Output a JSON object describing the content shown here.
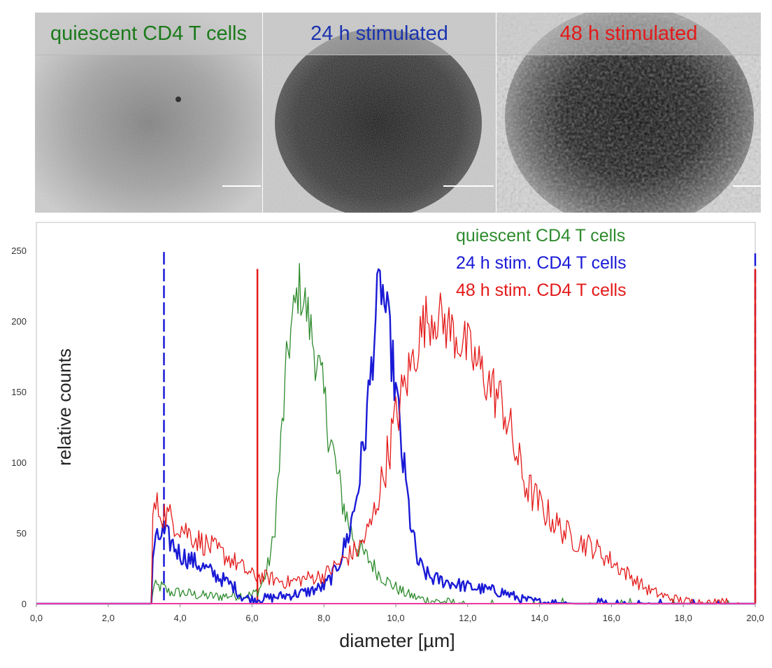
{
  "micrographs": [
    {
      "title": "quiescent CD4 T cells",
      "color": "#1b7a1b"
    },
    {
      "title": "24 h stimulated",
      "color": "#1a33b0"
    },
    {
      "title": "48 h stimulated",
      "color": "#e41a1a"
    }
  ],
  "chart_data": {
    "type": "line",
    "xlabel": "diameter [µm]",
    "ylabel": "relative counts",
    "xlim": [
      0,
      20
    ],
    "ylim": [
      0,
      260
    ],
    "xticks": [
      "0,0",
      "2,0",
      "4,0",
      "6,0",
      "8,0",
      "10,0",
      "12,0",
      "14,0",
      "16,0",
      "18,0",
      "20,0"
    ],
    "yticks": [
      "0",
      "50",
      "100",
      "150",
      "200",
      "250"
    ],
    "grid": false,
    "legend_position": "top-right",
    "series": [
      {
        "name": "quiescent CD4 T cells",
        "color": "#2e8b2e",
        "width": 1.3,
        "points": [
          [
            0,
            0
          ],
          [
            3.2,
            0
          ],
          [
            3.25,
            12
          ],
          [
            3.5,
            12
          ],
          [
            3.7,
            8
          ],
          [
            4.0,
            8
          ],
          [
            4.5,
            6
          ],
          [
            5.0,
            5
          ],
          [
            5.5,
            6
          ],
          [
            6.0,
            6
          ],
          [
            6.2,
            10
          ],
          [
            6.4,
            22
          ],
          [
            6.6,
            45
          ],
          [
            6.8,
            110
          ],
          [
            7.0,
            180
          ],
          [
            7.2,
            210
          ],
          [
            7.3,
            225
          ],
          [
            7.5,
            210
          ],
          [
            7.7,
            185
          ],
          [
            7.9,
            160
          ],
          [
            8.1,
            130
          ],
          [
            8.3,
            100
          ],
          [
            8.5,
            75
          ],
          [
            8.7,
            55
          ],
          [
            8.9,
            42
          ],
          [
            9.1,
            35
          ],
          [
            9.3,
            30
          ],
          [
            9.5,
            22
          ],
          [
            9.8,
            15
          ],
          [
            10.2,
            8
          ],
          [
            10.6,
            4
          ],
          [
            11.0,
            2
          ],
          [
            11.5,
            1
          ],
          [
            12.0,
            0
          ],
          [
            20,
            0
          ]
        ]
      },
      {
        "name": "24 h stim. CD4 T cells",
        "color": "#1a1ad6",
        "width": 2.4,
        "points": [
          [
            0,
            0
          ],
          [
            3.2,
            0
          ],
          [
            3.25,
            40
          ],
          [
            3.5,
            50
          ],
          [
            3.7,
            45
          ],
          [
            4.0,
            35
          ],
          [
            4.5,
            28
          ],
          [
            5.0,
            20
          ],
          [
            5.5,
            12
          ],
          [
            5.7,
            5
          ],
          [
            6.0,
            3
          ],
          [
            6.5,
            4
          ],
          [
            7.0,
            6
          ],
          [
            7.5,
            8
          ],
          [
            8.0,
            12
          ],
          [
            8.3,
            22
          ],
          [
            8.5,
            35
          ],
          [
            8.7,
            50
          ],
          [
            8.9,
            75
          ],
          [
            9.1,
            110
          ],
          [
            9.3,
            160
          ],
          [
            9.5,
            220
          ],
          [
            9.6,
            225
          ],
          [
            9.7,
            210
          ],
          [
            9.8,
            195
          ],
          [
            10.0,
            150
          ],
          [
            10.2,
            100
          ],
          [
            10.4,
            60
          ],
          [
            10.6,
            30
          ],
          [
            10.8,
            22
          ],
          [
            11.0,
            18
          ],
          [
            11.5,
            15
          ],
          [
            12.0,
            12
          ],
          [
            12.5,
            10
          ],
          [
            13.0,
            8
          ],
          [
            13.5,
            3
          ],
          [
            14.0,
            1
          ],
          [
            15.0,
            0
          ],
          [
            20,
            0
          ]
        ]
      },
      {
        "name": "48 h stim. CD4 T cells",
        "color": "#e41a1a",
        "width": 1.3,
        "points": [
          [
            0,
            0
          ],
          [
            3.2,
            0
          ],
          [
            3.25,
            70
          ],
          [
            3.5,
            65
          ],
          [
            4.0,
            55
          ],
          [
            4.5,
            45
          ],
          [
            5.0,
            38
          ],
          [
            5.5,
            30
          ],
          [
            6.0,
            20
          ],
          [
            6.5,
            18
          ],
          [
            7.0,
            15
          ],
          [
            7.5,
            18
          ],
          [
            8.0,
            20
          ],
          [
            8.5,
            30
          ],
          [
            9.0,
            40
          ],
          [
            9.3,
            55
          ],
          [
            9.6,
            85
          ],
          [
            9.9,
            120
          ],
          [
            10.2,
            150
          ],
          [
            10.5,
            175
          ],
          [
            10.8,
            200
          ],
          [
            11.1,
            205
          ],
          [
            11.5,
            195
          ],
          [
            12.0,
            180
          ],
          [
            12.5,
            160
          ],
          [
            13.0,
            140
          ],
          [
            13.3,
            110
          ],
          [
            13.6,
            85
          ],
          [
            14.0,
            70
          ],
          [
            14.5,
            55
          ],
          [
            15.0,
            45
          ],
          [
            15.5,
            40
          ],
          [
            16.0,
            30
          ],
          [
            16.5,
            20
          ],
          [
            17.0,
            10
          ],
          [
            17.5,
            5
          ],
          [
            18.0,
            2
          ],
          [
            19.0,
            0
          ],
          [
            20,
            0
          ]
        ]
      }
    ],
    "markers": [
      {
        "x": 3.55,
        "color": "#1a1ad6",
        "style": "dashed",
        "top": 249
      },
      {
        "x": 6.15,
        "color": "#e41a1a",
        "style": "solid",
        "top": 237
      },
      {
        "x": 20.0,
        "color": "#1a1ad6",
        "style": "dashed",
        "top": 248
      },
      {
        "x": 20.0,
        "color": "#e41a1a",
        "style": "solid",
        "top": 237
      }
    ],
    "baseline_color": "#e83a9e"
  }
}
